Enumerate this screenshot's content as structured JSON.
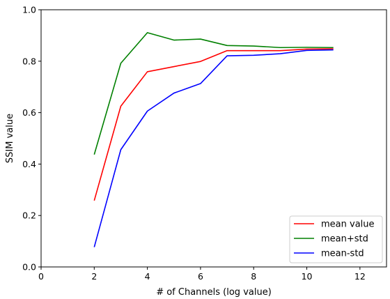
{
  "chart_data": {
    "type": "line",
    "xlabel": "# of Channels (log value)",
    "ylabel": "SSIM value",
    "xlim": [
      0,
      13
    ],
    "ylim": [
      0.0,
      1.0
    ],
    "xticks": [
      0,
      2,
      4,
      6,
      8,
      10,
      12
    ],
    "yticks": [
      0.0,
      0.2,
      0.4,
      0.6,
      0.8,
      1.0
    ],
    "xtick_labels": [
      "0",
      "2",
      "4",
      "6",
      "8",
      "10",
      "12"
    ],
    "ytick_labels": [
      "0.0",
      "0.2",
      "0.4",
      "0.6",
      "0.8",
      "1.0"
    ],
    "grid": false,
    "legend_position": "lower-right",
    "x": [
      2,
      3,
      4,
      5,
      6,
      7,
      8,
      9,
      10,
      11
    ],
    "series": [
      {
        "name": "mean value",
        "color": "#ff0000",
        "values": [
          0.258,
          0.625,
          0.759,
          0.779,
          0.799,
          0.841,
          0.841,
          0.841,
          0.847,
          0.848
        ]
      },
      {
        "name": "mean+std",
        "color": "#008000",
        "values": [
          0.437,
          0.792,
          0.911,
          0.882,
          0.886,
          0.861,
          0.859,
          0.853,
          0.854,
          0.853
        ]
      },
      {
        "name": "mean-std",
        "color": "#0000ff",
        "values": [
          0.077,
          0.456,
          0.606,
          0.676,
          0.713,
          0.821,
          0.823,
          0.829,
          0.842,
          0.844
        ]
      }
    ]
  }
}
